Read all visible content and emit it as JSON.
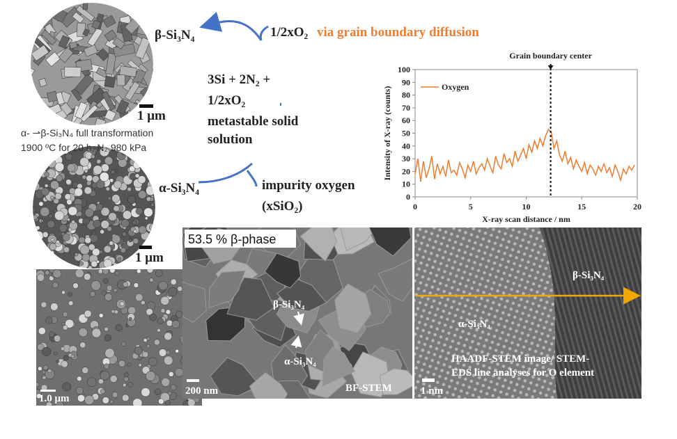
{
  "diagram": {
    "beta_top": "β-Si₃N₄",
    "o2_top": "1/2xO₂",
    "diffusion": "via grain boundary diffusion",
    "reaction_1": "3Si + 2N₂ +",
    "reaction_2": "1/2xO₂",
    "reaction_3": "metastable solid",
    "reaction_4": "solution",
    "alpha_mid": "α-Si₃N₄",
    "impurity_1": "impurity oxygen",
    "impurity_2": "(xSiO₂)",
    "caption_1": "α- ⇀β-Si₃N₄ full transformation",
    "caption_2": "1900 ºC for 20 h, N₂ 980 kPa",
    "scale_top": "1 μm",
    "scale_mid": "1 μm"
  },
  "micrographs": {
    "sem_scale": "1.0 μm",
    "stem_phase": "53.5 % β-phase",
    "stem_beta": "β-Si₃N₄",
    "stem_alpha": "α-Si₃N₄",
    "stem_scale": "200 nm",
    "stem_label": "BF-STEM",
    "haadf_beta": "β-Si₃N₄",
    "haadf_alpha": "α-Si₃N₄",
    "haadf_caption_1": "HAADF-STEM  image/ STEM-",
    "haadf_caption_2": "EDS  line analyses for O element",
    "haadf_scale": "1 nm"
  },
  "chart_data": {
    "type": "line",
    "xlabel": "X-ray scan distance / nm",
    "ylabel": "Intensity of X-ray (counts)",
    "annotation": {
      "text": "Grain boundary center",
      "x": 12.2
    },
    "xlim": [
      0,
      20
    ],
    "xticks": [
      0,
      5,
      10,
      15,
      20
    ],
    "ylim": [
      0,
      100
    ],
    "yticks": [
      0,
      10,
      20,
      30,
      40,
      50,
      60,
      70,
      80,
      90,
      100
    ],
    "grid": false,
    "legend": "upper left",
    "x": [
      0,
      0.25,
      0.5,
      0.75,
      1,
      1.25,
      1.5,
      1.75,
      2,
      2.25,
      2.5,
      2.75,
      3,
      3.25,
      3.5,
      3.75,
      4,
      4.25,
      4.5,
      4.75,
      5,
      5.25,
      5.5,
      5.75,
      6,
      6.25,
      6.5,
      6.75,
      7,
      7.25,
      7.5,
      7.75,
      8,
      8.25,
      8.5,
      8.75,
      9,
      9.25,
      9.5,
      9.75,
      10,
      10.25,
      10.5,
      10.75,
      11,
      11.25,
      11.5,
      11.75,
      12,
      12.25,
      12.5,
      12.75,
      13,
      13.25,
      13.5,
      13.75,
      14,
      14.25,
      14.5,
      14.75,
      15,
      15.25,
      15.5,
      15.75,
      16,
      16.25,
      16.5,
      16.75,
      17,
      17.25,
      17.5,
      17.75,
      18,
      18.25,
      18.5,
      18.75,
      19,
      19.25,
      19.5,
      19.75
    ],
    "series": [
      {
        "name": "Oxygen",
        "color": "#ed7d31",
        "values": [
          18,
          30,
          12,
          28,
          15,
          22,
          32,
          14,
          26,
          18,
          24,
          16,
          29,
          19,
          21,
          17,
          27,
          22,
          15,
          25,
          20,
          28,
          18,
          23,
          26,
          21,
          30,
          24,
          19,
          32,
          25,
          22,
          34,
          27,
          30,
          24,
          36,
          28,
          33,
          38,
          30,
          41,
          35,
          44,
          38,
          46,
          40,
          48,
          53,
          51,
          38,
          44,
          33,
          28,
          36,
          26,
          31,
          22,
          29,
          24,
          20,
          27,
          18,
          25,
          22,
          17,
          24,
          20,
          26,
          19,
          23,
          16,
          25,
          20,
          13,
          22,
          18,
          24,
          21,
          25
        ]
      }
    ]
  }
}
